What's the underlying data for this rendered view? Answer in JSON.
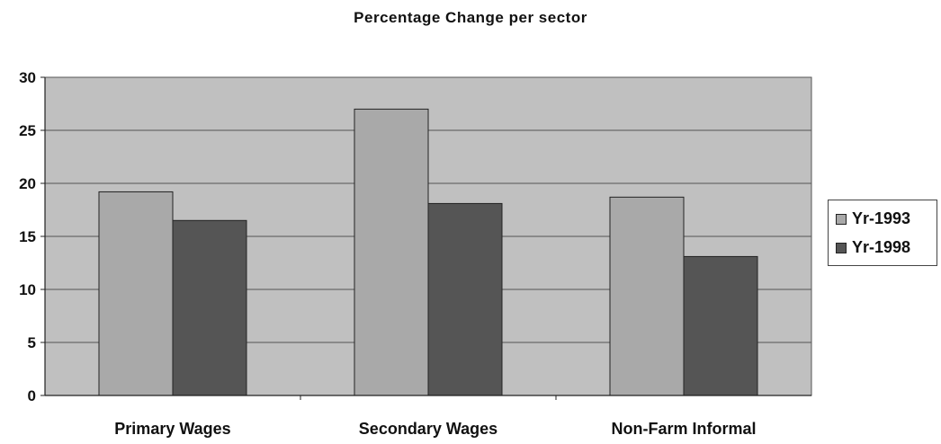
{
  "chart_data": {
    "type": "bar",
    "title": "Percentage Change per sector",
    "categories": [
      "Primary Wages",
      "Secondary Wages",
      "Non-Farm Informal"
    ],
    "series": [
      {
        "name": "Yr-1993",
        "values": [
          19.2,
          27.0,
          18.7
        ],
        "color": "#a9a9a9"
      },
      {
        "name": "Yr-1998",
        "values": [
          16.5,
          18.1,
          13.1
        ],
        "color": "#555555"
      }
    ],
    "xlabel": "",
    "ylabel": "",
    "ylim": [
      0,
      30
    ],
    "yticks": [
      0,
      5,
      10,
      15,
      20,
      25,
      30
    ],
    "grid": true,
    "plot_background": "#c0c0c0",
    "legend_position": "right"
  }
}
